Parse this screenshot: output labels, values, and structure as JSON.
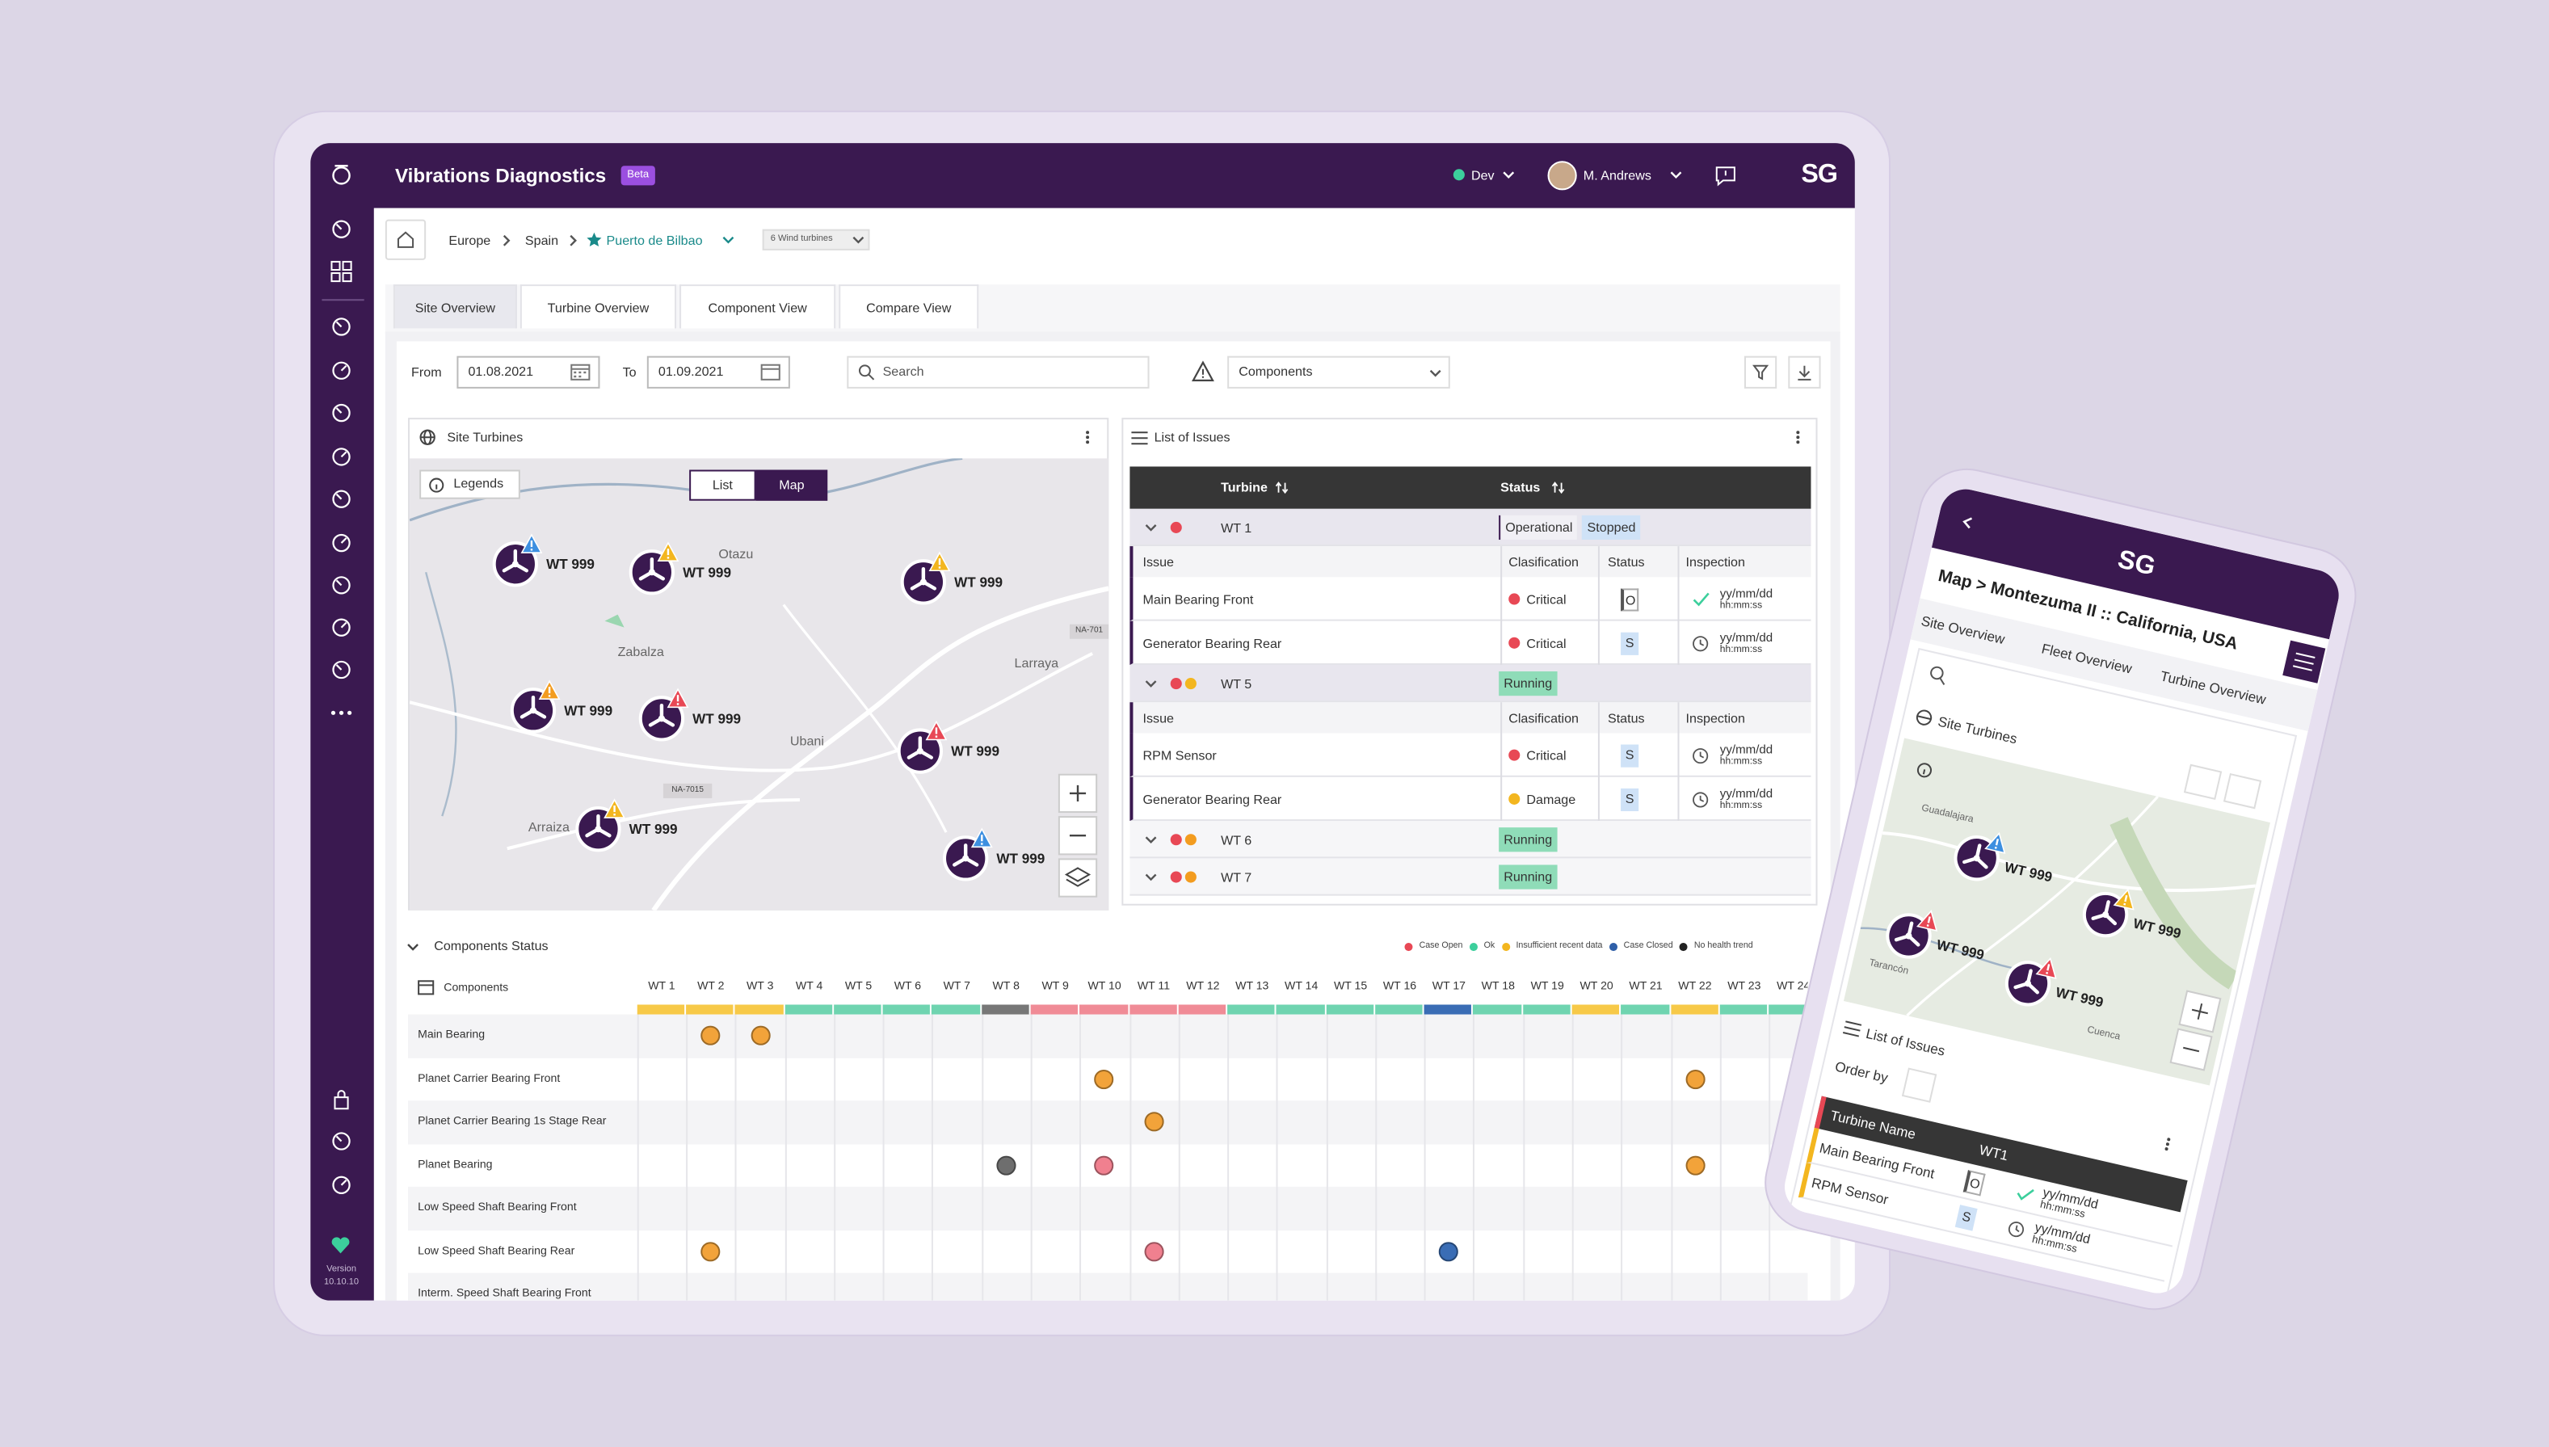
{
  "header": {
    "title": "Vibrations Diagnostics",
    "badge": "Beta",
    "environment": "Dev",
    "user": "M. Andrews",
    "logo": "SG"
  },
  "sidebar": {
    "version_label": "Version",
    "version": "10.10.10"
  },
  "breadcrumb": {
    "items": [
      "Europe",
      "Spain",
      "Puerto de Bilbao"
    ],
    "turbine_count": "6 Wind turbines"
  },
  "tabs": [
    "Site Overview",
    "Turbine Overview",
    "Component View",
    "Compare View"
  ],
  "filters": {
    "from_label": "From",
    "from": "01.08.2021",
    "to_label": "To",
    "to": "01.09.2021",
    "search": "Search",
    "components": "Components"
  },
  "site_turbines": {
    "title": "Site Turbines",
    "legends": "Legends",
    "view_toggle": [
      "List",
      "Map"
    ],
    "places": [
      "Otazu",
      "Zabalza",
      "Larraya",
      "Ubani",
      "Arraiza"
    ],
    "roads": [
      "NA-701",
      "NA-7015"
    ],
    "markers": [
      {
        "label": "WT 999",
        "alert_color": "#3d8fe0"
      },
      {
        "label": "WT 999",
        "alert_color": "#f3b61f"
      },
      {
        "label": "WT 999",
        "alert_color": "#f3b61f"
      },
      {
        "label": "WT 999",
        "alert_color": "#f39c1f"
      },
      {
        "label": "WT 999",
        "alert_color": "#e84855"
      },
      {
        "label": "WT 999",
        "alert_color": "#e84855"
      },
      {
        "label": "WT 999",
        "alert_color": "#f3b61f"
      },
      {
        "label": "WT 999",
        "alert_color": "#3d8fe0"
      }
    ]
  },
  "list_of_issues": {
    "title": "List of Issues",
    "columns": [
      "Turbine",
      "Status"
    ],
    "groups": [
      {
        "turbine": "WT 1",
        "status_dots": [
          "#e84855"
        ],
        "statuses": [
          "Operational",
          "Stopped"
        ],
        "status_colors": [
          "#f1f0f5",
          "#cfe2f7"
        ],
        "columns": [
          "Issue",
          "Clasification",
          "Status",
          "Inspection"
        ],
        "issues": [
          {
            "issue": "Main Bearing Front",
            "classification": "Critical",
            "class_color": "#e84855",
            "status": "O",
            "date": "yy/mm/dd",
            "time": "hh:mm:ss",
            "inspected": true
          },
          {
            "issue": "Generator Bearing Rear",
            "classification": "Critical",
            "class_color": "#e84855",
            "status": "S",
            "date": "yy/mm/dd",
            "time": "hh:mm:ss",
            "inspected": false
          }
        ]
      },
      {
        "turbine": "WT 5",
        "status_dots": [
          "#e84855",
          "#f3b61f"
        ],
        "statuses": [
          "Running"
        ],
        "status_colors": [
          "#8fdcb8"
        ],
        "columns": [
          "Issue",
          "Clasification",
          "Status",
          "Inspection"
        ],
        "issues": [
          {
            "issue": "RPM Sensor",
            "classification": "Critical",
            "class_color": "#e84855",
            "status": "S",
            "date": "yy/mm/dd",
            "time": "hh:mm:ss",
            "inspected": false
          },
          {
            "issue": "Generator Bearing Rear",
            "classification": "Damage",
            "class_color": "#f3b61f",
            "status": "S",
            "date": "yy/mm/dd",
            "time": "hh:mm:ss",
            "inspected": false
          }
        ]
      },
      {
        "turbine": "WT 6",
        "status_dots": [
          "#e84855",
          "#f39c1f"
        ],
        "statuses": [
          "Running"
        ],
        "status_colors": [
          "#8fdcb8"
        ]
      },
      {
        "turbine": "WT 7",
        "status_dots": [
          "#e84855",
          "#f39c1f"
        ],
        "statuses": [
          "Running"
        ],
        "status_colors": [
          "#8fdcb8"
        ]
      }
    ]
  },
  "components_status": {
    "title": "Components Status",
    "legend": [
      {
        "name": "Case Open",
        "color": "#e84855"
      },
      {
        "name": "Ok",
        "color": "#3ccf9c"
      },
      {
        "name": "Insufficient recent data",
        "color": "#f3b61f"
      },
      {
        "name": "Case Closed",
        "color": "#2f5fa8"
      },
      {
        "name": "No health trend",
        "color": "#222222"
      }
    ],
    "header": "Components",
    "turbines": [
      "WT 1",
      "WT 2",
      "WT 3",
      "WT 4",
      "WT 5",
      "WT 6",
      "WT 7",
      "WT 8",
      "WT 9",
      "WT 10",
      "WT 11",
      "WT 12",
      "WT 13",
      "WT 14",
      "WT 15",
      "WT 16",
      "WT 17",
      "WT 18",
      "WT 19",
      "WT 20",
      "WT 21",
      "WT 22",
      "WT 23",
      "WT 24"
    ],
    "turbine_colors": [
      "#f7c948",
      "#f7c948",
      "#f7c948",
      "#6fd4b0",
      "#6fd4b0",
      "#6fd4b0",
      "#6fd4b0",
      "#777777",
      "#f08b96",
      "#f08b96",
      "#f08b96",
      "#f08b96",
      "#6fd4b0",
      "#6fd4b0",
      "#6fd4b0",
      "#6fd4b0",
      "#3a6db5",
      "#6fd4b0",
      "#6fd4b0",
      "#f7c948",
      "#6fd4b0",
      "#f7c948",
      "#6fd4b0",
      "#6fd4b0"
    ],
    "components": [
      {
        "name": "Main Bearing",
        "cells": [
          null,
          "#f2a33a",
          "#f2a33a",
          null,
          null,
          null,
          null,
          null,
          null,
          null,
          null,
          null,
          null,
          null,
          null,
          null,
          null,
          null,
          null,
          null,
          null,
          null,
          null,
          null
        ]
      },
      {
        "name": "Planet Carrier Bearing Front",
        "cells": [
          null,
          null,
          null,
          null,
          null,
          null,
          null,
          null,
          null,
          "#f2a33a",
          null,
          null,
          null,
          null,
          null,
          null,
          null,
          null,
          null,
          null,
          null,
          "#f2a33a",
          null,
          null
        ]
      },
      {
        "name": "Planet Carrier Bearing 1s Stage Rear",
        "cells": [
          null,
          null,
          null,
          null,
          null,
          null,
          null,
          null,
          null,
          null,
          "#f2a33a",
          null,
          null,
          null,
          null,
          null,
          null,
          null,
          null,
          null,
          null,
          null,
          null,
          null
        ]
      },
      {
        "name": "Planet Bearing",
        "cells": [
          null,
          null,
          null,
          null,
          null,
          null,
          null,
          "#6e6e6e",
          null,
          "#f0808f",
          null,
          null,
          null,
          null,
          null,
          null,
          null,
          null,
          null,
          null,
          null,
          "#f2a33a",
          null,
          null
        ]
      },
      {
        "name": "Low Speed Shaft Bearing Front",
        "cells": [
          null,
          null,
          null,
          null,
          null,
          null,
          null,
          null,
          null,
          null,
          null,
          null,
          null,
          null,
          null,
          null,
          null,
          null,
          null,
          null,
          null,
          null,
          null,
          null
        ]
      },
      {
        "name": "Low Speed Shaft Bearing Rear",
        "cells": [
          null,
          "#f2a33a",
          null,
          null,
          null,
          null,
          null,
          null,
          null,
          null,
          "#f0808f",
          null,
          null,
          null,
          null,
          null,
          "#3a6db5",
          null,
          null,
          null,
          null,
          null,
          null,
          null
        ]
      },
      {
        "name": "Interm. Speed Shaft Bearing Front",
        "cells": [
          null,
          null,
          null,
          null,
          null,
          null,
          null,
          null,
          null,
          null,
          null,
          null,
          null,
          null,
          null,
          null,
          null,
          null,
          null,
          null,
          null,
          null,
          null,
          null
        ]
      }
    ]
  },
  "mobile": {
    "logo": "SG",
    "breadcrumb": "Map > Montezuma II :: California, USA",
    "tabs": [
      "Site Overview",
      "Fleet Overview",
      "Turbine Overview"
    ],
    "site_turbines": "Site Turbines",
    "places": [
      "Guadalajara",
      "Tarancón",
      "Cuenca"
    ],
    "markers": [
      {
        "label": "WT 999",
        "alert_color": "#3d8fe0"
      },
      {
        "label": "WT 999",
        "alert_color": "#f3b61f"
      },
      {
        "label": "WT 999",
        "alert_color": "#e84855"
      },
      {
        "label": "WT 999",
        "alert_color": "#e84855"
      }
    ],
    "list_title": "List of Issues",
    "order_by": "Order by",
    "table_header": [
      "Turbine Name",
      "WT1"
    ],
    "rows": [
      {
        "issue": "Main Bearing Front",
        "status": "O",
        "date": "yy/mm/dd",
        "time": "hh:mm:ss",
        "inspected": true
      },
      {
        "issue": "RPM Sensor",
        "status": "S",
        "date": "yy/mm/dd",
        "time": "hh:mm:ss",
        "inspected": false
      }
    ]
  }
}
